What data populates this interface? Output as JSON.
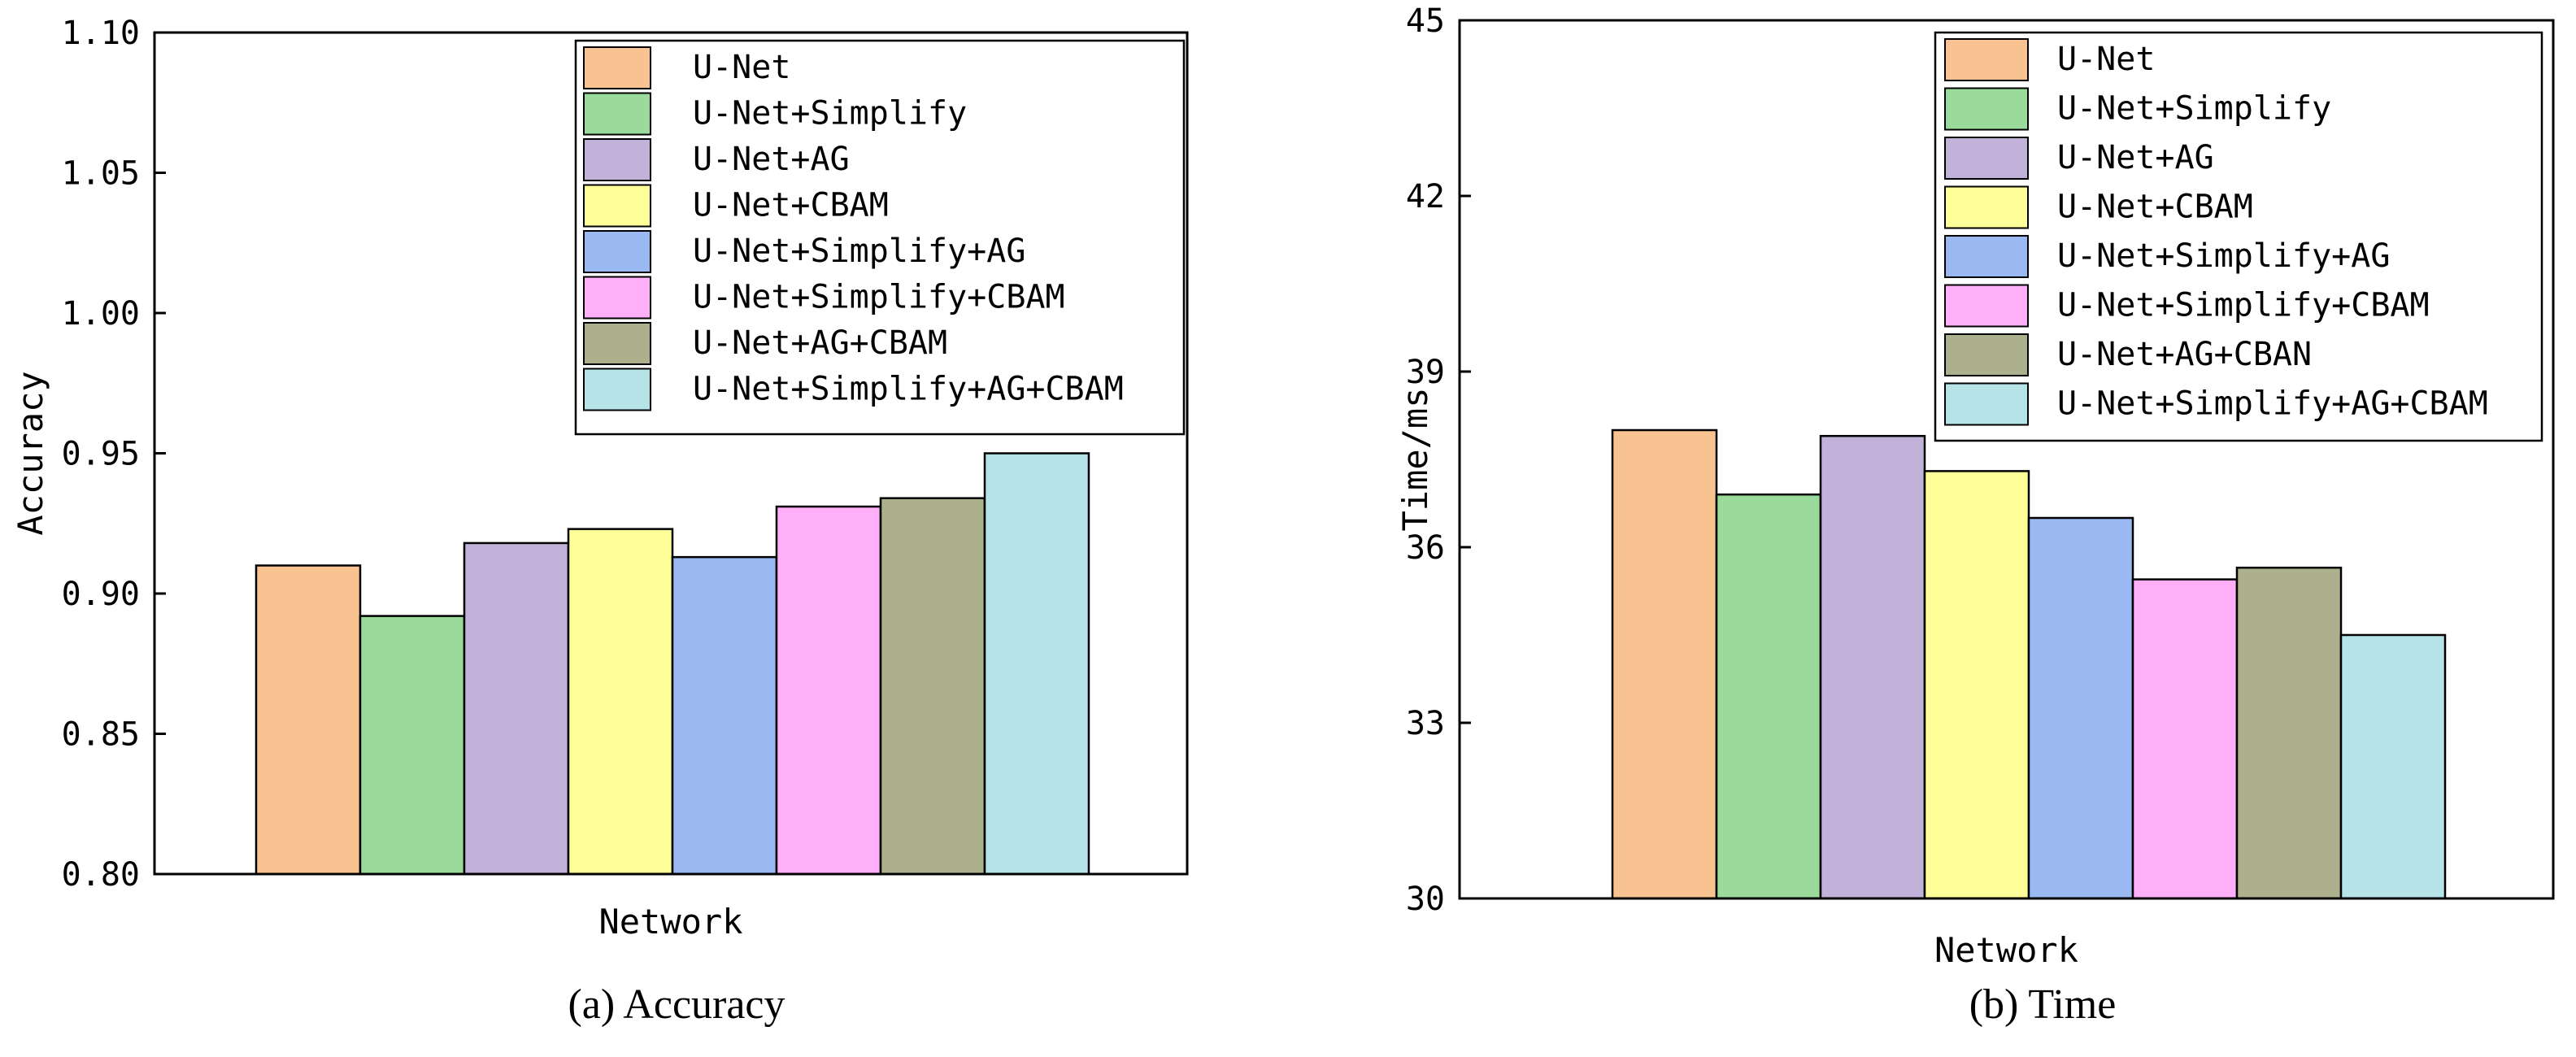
{
  "chart_data": [
    {
      "type": "bar",
      "title": "",
      "caption": "(a) Accuracy",
      "xlabel": "Network",
      "ylabel": "Accuracy",
      "ylim": [
        0.8,
        1.1
      ],
      "yticks": [
        "0.80",
        "0.85",
        "0.90",
        "0.95",
        "1.00",
        "1.05",
        "1.10"
      ],
      "ytick_values": [
        0.8,
        0.85,
        0.9,
        0.95,
        1.0,
        1.05,
        1.1
      ],
      "legend_position": "top-right",
      "series": [
        {
          "name": "U-Net",
          "value": 0.91,
          "color": "#F9C391"
        },
        {
          "name": "U-Net+Simplify",
          "value": 0.892,
          "color": "#9ADA9A"
        },
        {
          "name": "U-Net+AG",
          "value": 0.918,
          "color": "#C2B1D8"
        },
        {
          "name": "U-Net+CBAM",
          "value": 0.923,
          "color": "#FFFF99"
        },
        {
          "name": "U-Net+Simplify+AG",
          "value": 0.913,
          "color": "#9AB8F2"
        },
        {
          "name": "U-Net+Simplify+CBAM",
          "value": 0.931,
          "color": "#FFAEF8"
        },
        {
          "name": "U-Net+AG+CBAM",
          "value": 0.934,
          "color": "#ADB08D"
        },
        {
          "name": "U-Net+Simplify+AG+CBAM",
          "value": 0.95,
          "color": "#B6E3E8"
        }
      ]
    },
    {
      "type": "bar",
      "title": "",
      "caption": "(b) Time",
      "xlabel": "Network",
      "ylabel": "Time/ms",
      "ylim": [
        30,
        45
      ],
      "yticks": [
        "30",
        "33",
        "36",
        "39",
        "42",
        "45"
      ],
      "ytick_values": [
        30,
        33,
        36,
        39,
        42,
        45
      ],
      "legend_position": "top-right",
      "series": [
        {
          "name": "U-Net",
          "value": 38.0,
          "color": "#F9C391"
        },
        {
          "name": "U-Net+Simplify",
          "value": 36.9,
          "color": "#9ADA9A"
        },
        {
          "name": "U-Net+AG",
          "value": 37.9,
          "color": "#C2B1D8"
        },
        {
          "name": "U-Net+CBAM",
          "value": 37.3,
          "color": "#FFFF99"
        },
        {
          "name": "U-Net+Simplify+AG",
          "value": 36.5,
          "color": "#9AB8F2"
        },
        {
          "name": "U-Net+Simplify+CBAM",
          "value": 35.45,
          "color": "#FFAEF8"
        },
        {
          "name": "U-Net+AG+CBAN",
          "value": 35.65,
          "color": "#ADB08D"
        },
        {
          "name": "U-Net+Simplify+AG+CBAM",
          "value": 34.5,
          "color": "#B6E3E8"
        }
      ]
    }
  ]
}
